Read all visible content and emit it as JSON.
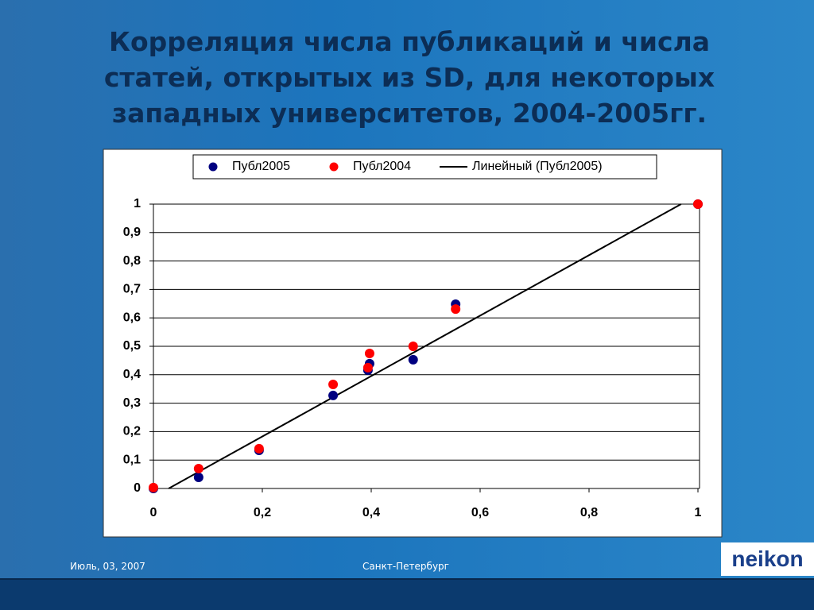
{
  "slide": {
    "title": "Корреляция числа публикаций и числа статей, открытых из SD, для  некоторых западных университетов, 2004-2005гг.",
    "footer_date": "Июль, 03, 2007",
    "footer_place": "Санкт-Петербург",
    "logo": "neikon"
  },
  "chart_data": {
    "type": "scatter",
    "series": [
      {
        "name": "Публ2005",
        "color": "#000080",
        "x": [
          0,
          0.083,
          0.194,
          0.33,
          0.394,
          0.397,
          0.477,
          0.555,
          1
        ],
        "values": [
          0,
          0.039,
          0.134,
          0.327,
          0.416,
          0.439,
          0.453,
          0.648,
          1
        ]
      },
      {
        "name": "Публ2004",
        "color": "#ff0000",
        "x": [
          0,
          0.083,
          0.194,
          0.33,
          0.394,
          0.397,
          0.477,
          0.555,
          1
        ],
        "values": [
          0.003,
          0.07,
          0.14,
          0.366,
          0.425,
          0.475,
          0.5,
          0.631,
          1
        ]
      }
    ],
    "trendline": {
      "name": "Линейный (Публ2005)",
      "color": "#000000",
      "x": [
        0.028,
        0.969
      ],
      "values": [
        0,
        1
      ]
    },
    "xlim": [
      0,
      1
    ],
    "ylim": [
      0,
      1
    ],
    "xticks": [
      0,
      {
        "value": 0.2,
        "label": "0,2"
      },
      {
        "value": 0.4,
        "label": "0,4"
      },
      {
        "value": 0.6,
        "label": "0,6"
      },
      {
        "value": 0.8,
        "label": "0,8"
      },
      1
    ],
    "yticks": [
      0,
      {
        "value": 0.1,
        "label": "0,1"
      },
      {
        "value": 0.2,
        "label": "0,2"
      },
      {
        "value": 0.3,
        "label": "0,3"
      },
      {
        "value": 0.4,
        "label": "0,4"
      },
      {
        "value": 0.5,
        "label": "0,5"
      },
      {
        "value": 0.6,
        "label": "0,6"
      },
      {
        "value": 0.7,
        "label": "0,7"
      },
      {
        "value": 0.8,
        "label": "0,8"
      },
      {
        "value": 0.9,
        "label": "0,9"
      },
      1
    ],
    "grid": true,
    "legend": "top"
  }
}
